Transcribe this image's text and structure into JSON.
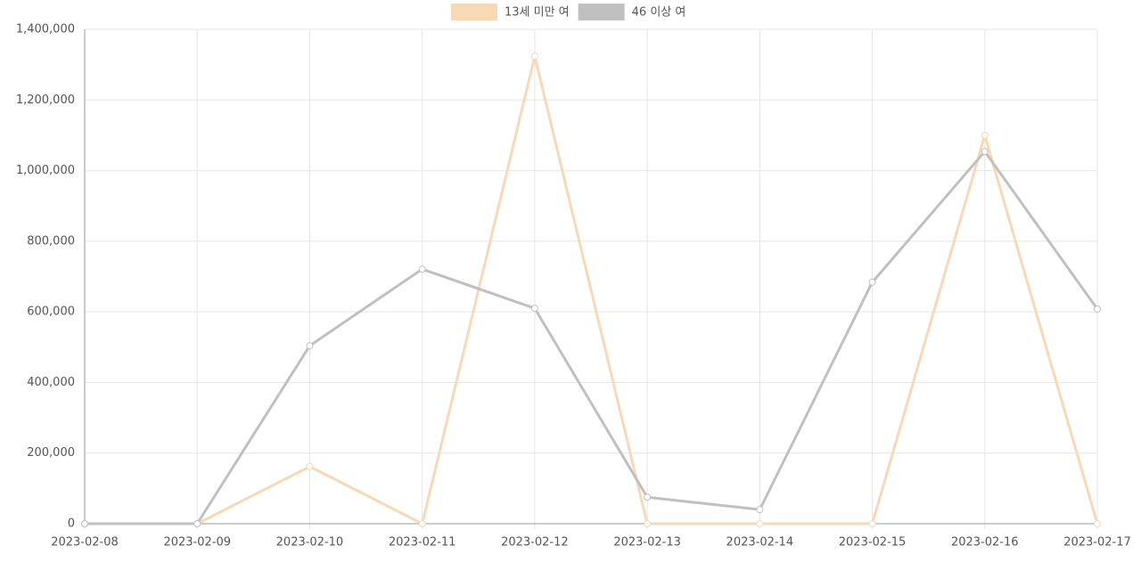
{
  "chart_data": {
    "type": "line",
    "categories": [
      "2023-02-08",
      "2023-02-09",
      "2023-02-10",
      "2023-02-11",
      "2023-02-12",
      "2023-02-13",
      "2023-02-14",
      "2023-02-15",
      "2023-02-16",
      "2023-02-17"
    ],
    "series": [
      {
        "name": "13세 미만 여",
        "color": "#f8d9b6",
        "values": [
          0,
          0,
          162000,
          0,
          1324000,
          0,
          0,
          0,
          1100000,
          0
        ]
      },
      {
        "name": "46 이상 여",
        "color": "#c0c0c0",
        "values": [
          0,
          0,
          504000,
          721000,
          610000,
          75000,
          40000,
          684000,
          1054000,
          608000
        ]
      }
    ],
    "ylim": [
      0,
      1400000
    ],
    "yticks": [
      0,
      {
        "value": 200000,
        "label": "200,000"
      },
      {
        "value": 400000,
        "label": "400,000"
      },
      {
        "value": 600000,
        "label": "600,000"
      },
      {
        "value": 800000,
        "label": "800,000"
      },
      {
        "value": 1000000,
        "label": "1,000,000"
      },
      {
        "value": 1200000,
        "label": "1,200,000"
      },
      {
        "value": 1400000,
        "label": "1,400,000"
      }
    ],
    "grid": true,
    "legend": "top"
  }
}
